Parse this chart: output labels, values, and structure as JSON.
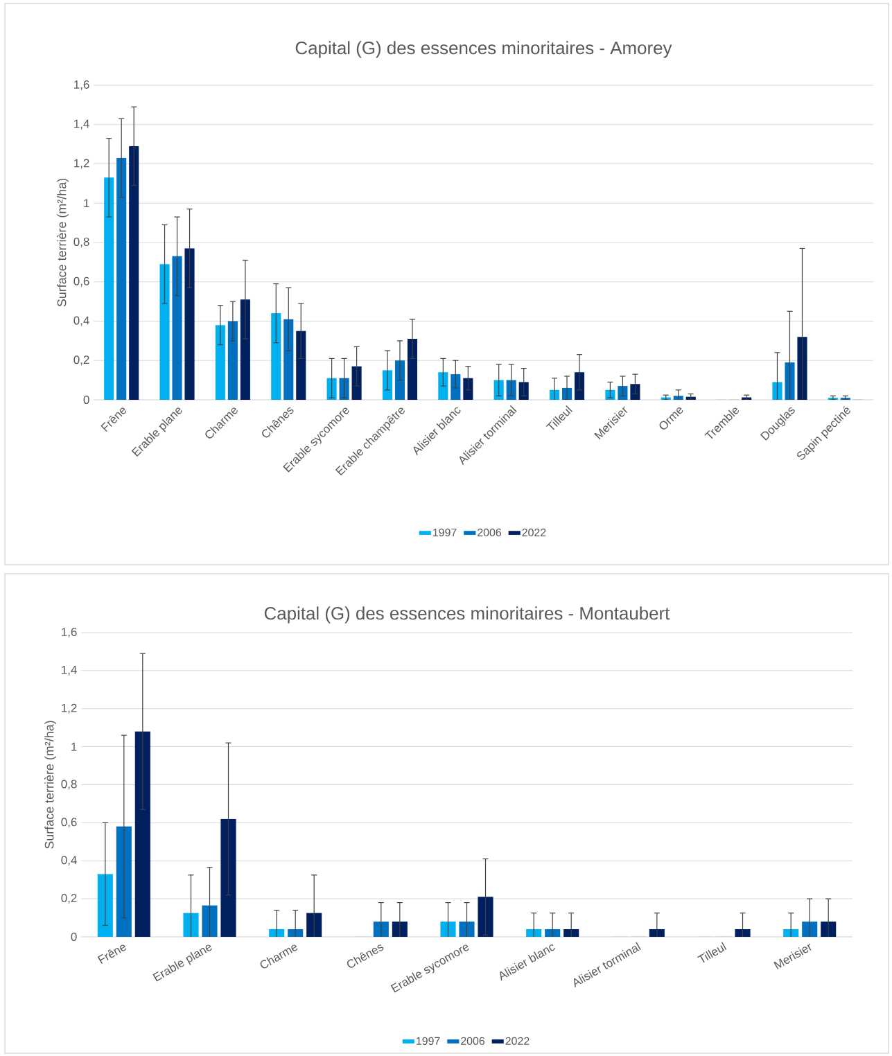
{
  "chart_data": [
    {
      "type": "bar",
      "title": "Capital (G) des essences minoritaires - Amorey",
      "ylabel": "Surface terrière (m²/ha)",
      "categories": [
        "Frêne",
        "Erable plane",
        "Charme",
        "Chênes",
        "Erable sycomore",
        "Erable champêtre",
        "Alisier blanc",
        "Alisier torminal",
        "Tilleul",
        "Merisier",
        "Orme",
        "Tremble",
        "Douglas",
        "Sapin pectiné"
      ],
      "series": [
        {
          "name": "1997",
          "color": "#00b0f0",
          "values": [
            1.13,
            0.69,
            0.38,
            0.44,
            0.11,
            0.15,
            0.14,
            0.1,
            0.05,
            0.05,
            0.012,
            0,
            0.09,
            0.01
          ],
          "errors": [
            0.2,
            0.2,
            0.1,
            0.15,
            0.1,
            0.1,
            0.07,
            0.08,
            0.06,
            0.04,
            0.012,
            null,
            0.15,
            0.01
          ]
        },
        {
          "name": "2006",
          "color": "#0070c0",
          "values": [
            1.23,
            0.73,
            0.4,
            0.41,
            0.11,
            0.2,
            0.13,
            0.1,
            0.06,
            0.07,
            0.02,
            0,
            0.19,
            0.01
          ],
          "errors": [
            0.2,
            0.2,
            0.1,
            0.16,
            0.1,
            0.1,
            0.07,
            0.08,
            0.06,
            0.05,
            0.03,
            null,
            0.26,
            0.01
          ]
        },
        {
          "name": "2022",
          "color": "#002060",
          "values": [
            1.29,
            0.77,
            0.51,
            0.35,
            0.17,
            0.31,
            0.11,
            0.09,
            0.14,
            0.08,
            0.015,
            0.012,
            0.32,
            0
          ],
          "errors": [
            0.2,
            0.2,
            0.2,
            0.14,
            0.1,
            0.1,
            0.06,
            0.07,
            0.09,
            0.05,
            0.015,
            0.012,
            0.45,
            null
          ]
        }
      ],
      "ylim": [
        0,
        1.6
      ],
      "yticks": [
        0,
        {
          "value": 0.2,
          "label": "0,2"
        },
        {
          "value": 0.4,
          "label": "0,4"
        },
        {
          "value": 0.6,
          "label": "0,6"
        },
        {
          "value": 0.8,
          "label": "0,8"
        },
        1,
        {
          "value": 1.2,
          "label": "1,2"
        },
        {
          "value": 1.4,
          "label": "1,4"
        },
        {
          "value": 1.6,
          "label": "1,6"
        }
      ],
      "grid": "y",
      "legend": "bottom"
    },
    {
      "type": "bar",
      "title": "Capital (G) des essences minoritaires - Montaubert",
      "ylabel": "Surface terrière (m²/ha)",
      "categories": [
        "Frêne",
        "Erable plane",
        "Charme",
        "Chênes",
        "Erable sycomore",
        "Alisier blanc",
        "Alisier torminal",
        "Tilleul",
        "Merisier"
      ],
      "series": [
        {
          "name": "1997",
          "color": "#00b0f0",
          "values": [
            0.33,
            0.125,
            0.04,
            0,
            0.08,
            0.04,
            0,
            0,
            0.04
          ],
          "errors": [
            0.27,
            0.2,
            0.1,
            null,
            0.1,
            0.085,
            null,
            null,
            0.085
          ]
        },
        {
          "name": "2006",
          "color": "#0070c0",
          "values": [
            0.58,
            0.165,
            0.04,
            0.08,
            0.08,
            0.04,
            0,
            0,
            0.08
          ],
          "errors": [
            0.48,
            0.2,
            0.1,
            0.1,
            0.1,
            0.085,
            null,
            null,
            0.12
          ]
        },
        {
          "name": "2022",
          "color": "#002060",
          "values": [
            1.08,
            0.62,
            0.125,
            0.08,
            0.21,
            0.04,
            0.04,
            0.04,
            0.08
          ],
          "errors": [
            0.41,
            0.4,
            0.2,
            0.1,
            0.2,
            0.085,
            0.085,
            0.085,
            0.12
          ]
        }
      ],
      "ylim": [
        0,
        1.6
      ],
      "yticks": [
        0,
        {
          "value": 0.2,
          "label": "0,2"
        },
        {
          "value": 0.4,
          "label": "0,4"
        },
        {
          "value": 0.6,
          "label": "0,6"
        },
        {
          "value": 0.8,
          "label": "0,8"
        },
        1,
        {
          "value": 1.2,
          "label": "1,2"
        },
        {
          "value": 1.4,
          "label": "1,4"
        },
        {
          "value": 1.6,
          "label": "1,6"
        }
      ],
      "grid": "y",
      "legend": "bottom"
    }
  ]
}
